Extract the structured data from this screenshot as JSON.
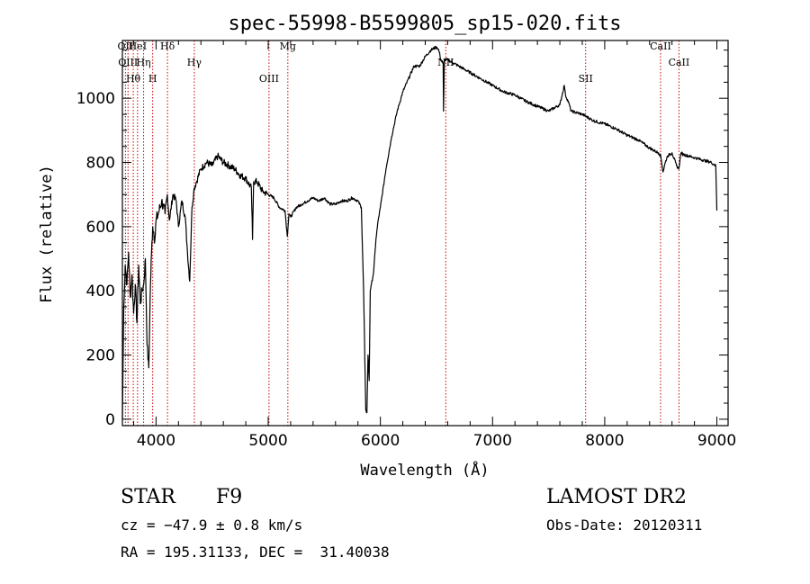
{
  "chart_data": {
    "type": "line",
    "title": "spec-55998-B5599805_sp15-020.fits",
    "xlabel": "Wavelength (Å)",
    "ylabel": "Flux (relative)",
    "xlim": [
      3700,
      9100
    ],
    "ylim": [
      -20,
      1180
    ],
    "xticks": [
      4000,
      5000,
      6000,
      7000,
      8000,
      9000
    ],
    "yticks": [
      0,
      200,
      400,
      600,
      800,
      1000
    ],
    "series": [
      {
        "name": "flux",
        "x": [
          3700,
          3712,
          3725,
          3740,
          3755,
          3770,
          3785,
          3800,
          3815,
          3830,
          3845,
          3860,
          3875,
          3890,
          3905,
          3920,
          3935,
          3950,
          3960,
          3970,
          3980,
          3990,
          4000,
          4020,
          4050,
          4080,
          4100,
          4120,
          4150,
          4180,
          4200,
          4230,
          4260,
          4280,
          4300,
          4320,
          4340,
          4360,
          4400,
          4450,
          4500,
          4550,
          4600,
          4650,
          4700,
          4750,
          4800,
          4850,
          4860,
          4870,
          4900,
          4950,
          5000,
          5050,
          5100,
          5150,
          5170,
          5185,
          5200,
          5250,
          5300,
          5350,
          5400,
          5450,
          5500,
          5550,
          5600,
          5650,
          5700,
          5750,
          5800,
          5830,
          5850,
          5870,
          5880,
          5890,
          5900,
          5910,
          5920,
          5940,
          5960,
          5980,
          6000,
          6050,
          6100,
          6150,
          6200,
          6250,
          6300,
          6350,
          6400,
          6450,
          6500,
          6520,
          6540,
          6560,
          6563,
          6570,
          6600,
          6650,
          6700,
          6750,
          6800,
          6900,
          7000,
          7100,
          7200,
          7300,
          7400,
          7500,
          7600,
          7640,
          7650,
          7680,
          7700,
          7800,
          7900,
          8000,
          8100,
          8200,
          8300,
          8400,
          8450,
          8480,
          8500,
          8520,
          8540,
          8560,
          8600,
          8640,
          8660,
          8680,
          8700,
          8800,
          8900,
          8950,
          8990,
          9000
        ],
        "values": [
          0,
          350,
          480,
          420,
          520,
          380,
          450,
          330,
          420,
          300,
          480,
          360,
          400,
          420,
          500,
          230,
          160,
          420,
          520,
          600,
          580,
          560,
          620,
          640,
          680,
          640,
          700,
          620,
          700,
          680,
          600,
          680,
          630,
          520,
          430,
          660,
          720,
          740,
          780,
          800,
          790,
          820,
          800,
          790,
          780,
          760,
          750,
          720,
          560,
          740,
          740,
          710,
          700,
          690,
          660,
          650,
          570,
          640,
          630,
          660,
          670,
          680,
          690,
          680,
          690,
          670,
          670,
          680,
          680,
          690,
          680,
          660,
          400,
          30,
          20,
          200,
          120,
          400,
          420,
          460,
          560,
          620,
          660,
          780,
          880,
          960,
          1020,
          1060,
          1100,
          1100,
          1130,
          1150,
          1160,
          1150,
          1120,
          1110,
          960,
          1120,
          1120,
          1110,
          1100,
          1090,
          1080,
          1060,
          1040,
          1020,
          1010,
          990,
          975,
          960,
          980,
          1040,
          1010,
          985,
          960,
          950,
          930,
          920,
          905,
          885,
          870,
          845,
          835,
          830,
          820,
          770,
          800,
          820,
          830,
          790,
          780,
          830,
          825,
          815,
          805,
          800,
          790,
          650
        ]
      }
    ],
    "reference_lines": [
      {
        "wavelength": 3727,
        "label": "OII"
      },
      {
        "wavelength": 3750,
        "label": "OIII"
      },
      {
        "wavelength": 3797,
        "label": "Hθ"
      },
      {
        "wavelength": 3835,
        "label": "HeI"
      },
      {
        "wavelength": 3889,
        "label": "Hη"
      },
      {
        "wavelength": 3970,
        "label": "H"
      },
      {
        "wavelength": 4102,
        "label": "Hδ"
      },
      {
        "wavelength": 4341,
        "label": "Hγ"
      },
      {
        "wavelength": 5007,
        "label": "OIII"
      },
      {
        "wavelength": 5175,
        "label": "Mg"
      },
      {
        "wavelength": 6583,
        "label": "NII"
      },
      {
        "wavelength": 7830,
        "label": "SII"
      },
      {
        "wavelength": 8498,
        "label": "CaII"
      },
      {
        "wavelength": 8662,
        "label": "CaII"
      }
    ]
  },
  "info": {
    "object_class": "STAR",
    "subclass": "F9",
    "survey": "LAMOST DR2",
    "redshift": "cz = −47.9 ± 0.8 km/s",
    "obs_date": "Obs-Date: 20120311",
    "coords": "RA = 195.31133, DEC =  31.40038"
  },
  "colors": {
    "line": "#000000",
    "reference": "#cc0000",
    "background": "#ffffff"
  }
}
